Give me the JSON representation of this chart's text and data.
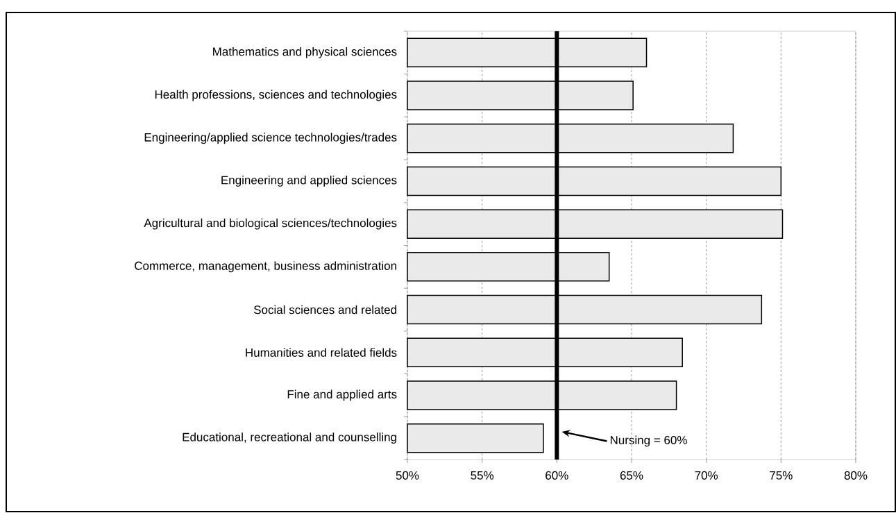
{
  "chart_data": {
    "type": "bar",
    "orientation": "horizontal",
    "categories": [
      "Mathematics and physical sciences",
      "Health professions, sciences and technologies",
      "Engineering/applied science technologies/trades",
      "Engineering and applied sciences",
      "Agricultural and biological sciences/technologies",
      "Commerce, management, business administration",
      "Social sciences and related",
      "Humanities and related fields",
      "Fine and applied arts",
      "Educational, recreational and counselling"
    ],
    "values": [
      66.0,
      65.1,
      71.8,
      75.0,
      75.1,
      63.5,
      73.7,
      68.4,
      68.0,
      59.1
    ],
    "color": "#eaeaea",
    "xlim": [
      50,
      80
    ],
    "xticks": [
      {
        "value": 50,
        "label": "50%"
      },
      {
        "value": 55,
        "label": "55%"
      },
      {
        "value": 60,
        "label": "60%"
      },
      {
        "value": 65,
        "label": "65%"
      },
      {
        "value": 70,
        "label": "70%"
      },
      {
        "value": 75,
        "label": "75%"
      },
      {
        "value": 80,
        "label": "80%"
      }
    ],
    "grid": "x",
    "ref_lines": [
      {
        "axis": "x",
        "value": 60,
        "label": "Nursing = 60%",
        "color": "#000000"
      }
    ]
  }
}
